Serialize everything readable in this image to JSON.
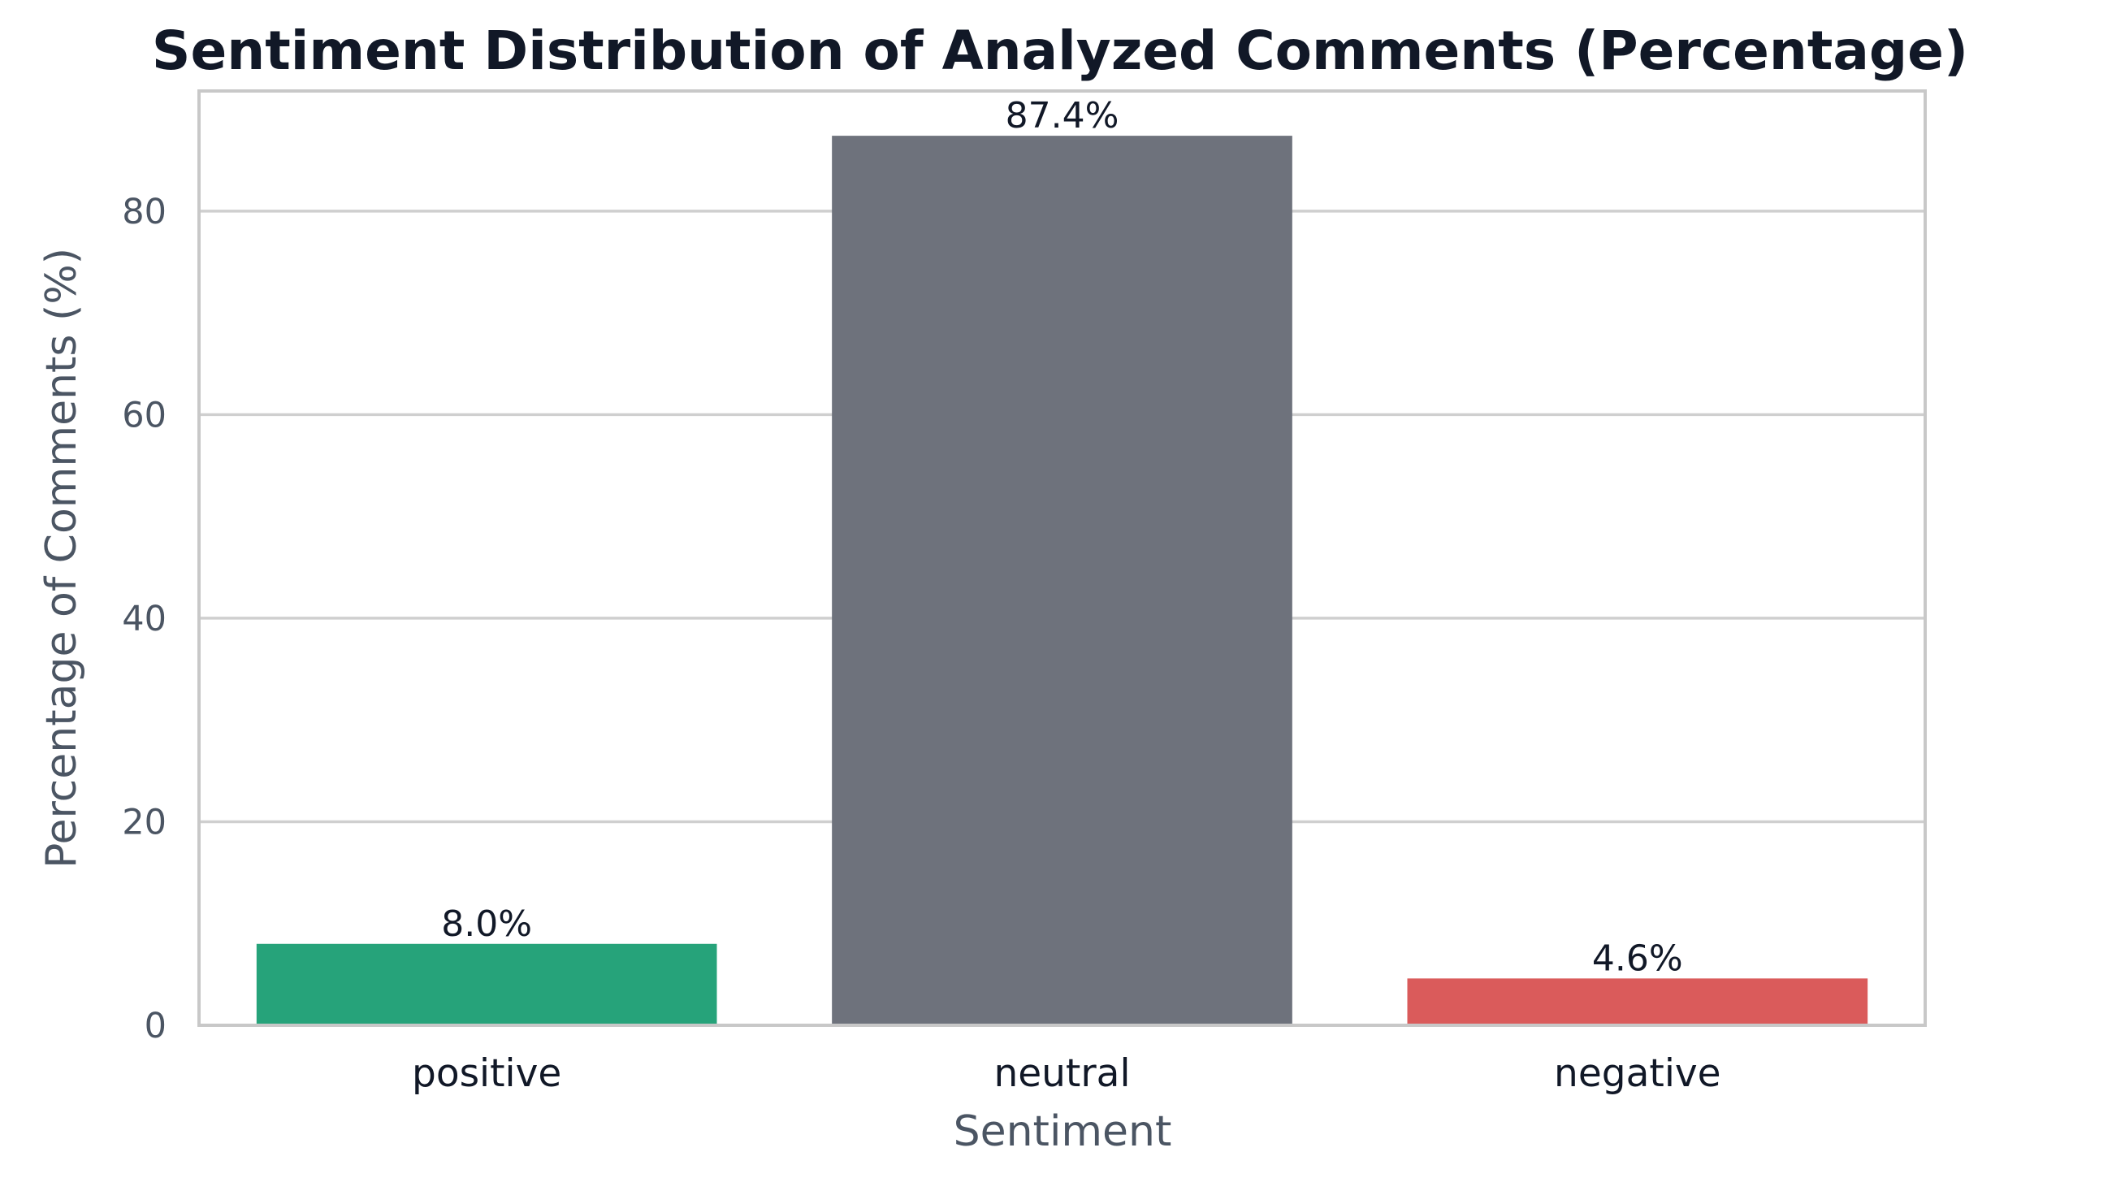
{
  "chart_data": {
    "type": "bar",
    "title": "Sentiment Distribution of Analyzed Comments (Percentage)",
    "xlabel": "Sentiment",
    "ylabel": "Percentage of Comments (%)",
    "categories": [
      "positive",
      "neutral",
      "negative"
    ],
    "values": [
      8.0,
      87.4,
      4.6
    ],
    "data_labels": [
      "8.0%",
      "87.4%",
      "4.6%"
    ],
    "colors": [
      "#26a37a",
      "#6e727c",
      "#da5b5b"
    ],
    "ylim": [
      0,
      91.8
    ],
    "yticks": [
      0,
      20,
      40,
      60,
      80
    ],
    "grid": "horizontal",
    "legend": "none"
  },
  "style": {
    "gridColor": "#cfcfcf",
    "frameColor": "#c8c8c8",
    "background": "#ffffff"
  }
}
